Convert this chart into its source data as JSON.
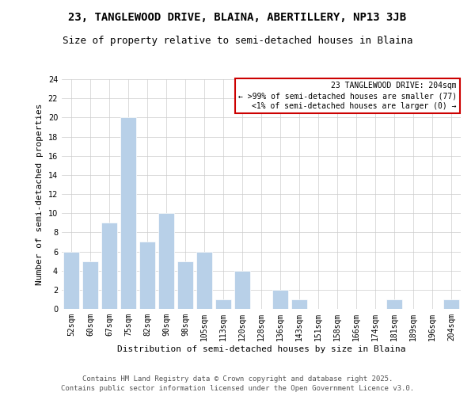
{
  "title": "23, TANGLEWOOD DRIVE, BLAINA, ABERTILLERY, NP13 3JB",
  "subtitle": "Size of property relative to semi-detached houses in Blaina",
  "xlabel": "Distribution of semi-detached houses by size in Blaina",
  "ylabel": "Number of semi-detached properties",
  "categories": [
    "52sqm",
    "60sqm",
    "67sqm",
    "75sqm",
    "82sqm",
    "90sqm",
    "98sqm",
    "105sqm",
    "113sqm",
    "120sqm",
    "128sqm",
    "136sqm",
    "143sqm",
    "151sqm",
    "158sqm",
    "166sqm",
    "174sqm",
    "181sqm",
    "189sqm",
    "196sqm",
    "204sqm"
  ],
  "values": [
    6,
    5,
    9,
    20,
    7,
    10,
    5,
    6,
    1,
    4,
    0,
    2,
    1,
    0,
    0,
    0,
    0,
    1,
    0,
    0,
    1
  ],
  "bar_color": "#b8d0e8",
  "bar_edgecolor": "#ffffff",
  "legend_title": "23 TANGLEWOOD DRIVE: 204sqm",
  "legend_line1": "← >99% of semi-detached houses are smaller (77)",
  "legend_line2": "<1% of semi-detached houses are larger (0) →",
  "legend_box_color": "#cc0000",
  "ylim": [
    0,
    24
  ],
  "yticks": [
    0,
    2,
    4,
    6,
    8,
    10,
    12,
    14,
    16,
    18,
    20,
    22,
    24
  ],
  "footer_line1": "Contains HM Land Registry data © Crown copyright and database right 2025.",
  "footer_line2": "Contains public sector information licensed under the Open Government Licence v3.0.",
  "background_color": "#ffffff",
  "grid_color": "#cccccc",
  "title_fontsize": 10,
  "subtitle_fontsize": 9,
  "axis_label_fontsize": 8,
  "tick_fontsize": 7,
  "legend_fontsize": 7,
  "footer_fontsize": 6.5
}
